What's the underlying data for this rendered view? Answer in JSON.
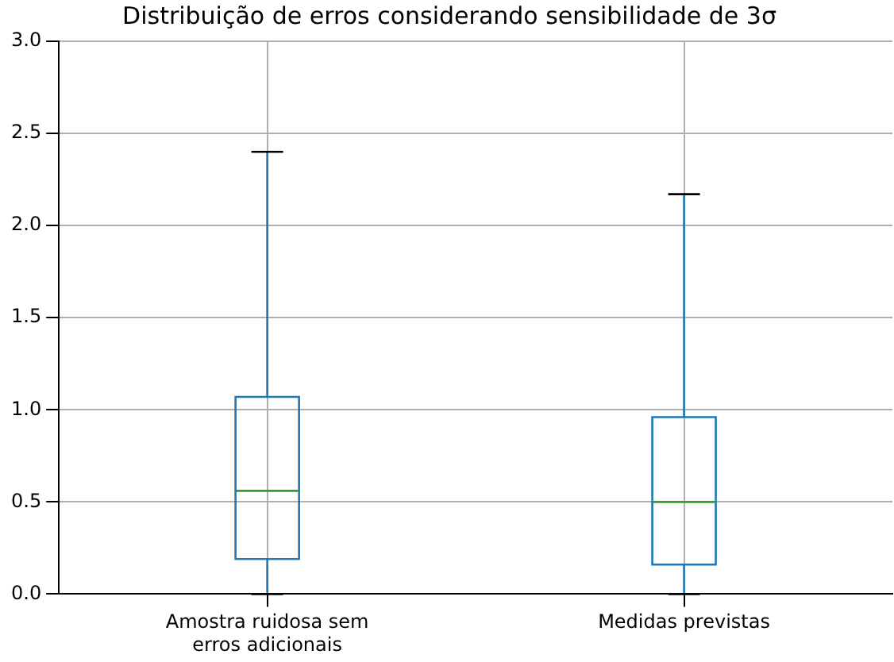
{
  "chart_data": {
    "type": "box",
    "title": "Distribuição de erros considerando sensibilidade de 3σ",
    "categories": [
      "Amostra ruidosa sem erros adicionais",
      "Medidas previstas"
    ],
    "boxes": [
      {
        "low": 0,
        "q1": 0.19,
        "median": 0.56,
        "q3": 1.07,
        "high": 2.4
      },
      {
        "low": 0,
        "q1": 0.16,
        "median": 0.5,
        "q3": 0.96,
        "high": 2.17
      }
    ],
    "color": "#1f77b4",
    "ylim": [
      0,
      3
    ],
    "yticks": [
      {
        "value": 0,
        "label": "0.0"
      },
      0.5,
      {
        "value": 1,
        "label": "1.0"
      },
      1.5,
      {
        "value": 2,
        "label": "2.0"
      },
      2.5,
      {
        "value": 3,
        "label": "3.0"
      }
    ],
    "grid": true
  }
}
